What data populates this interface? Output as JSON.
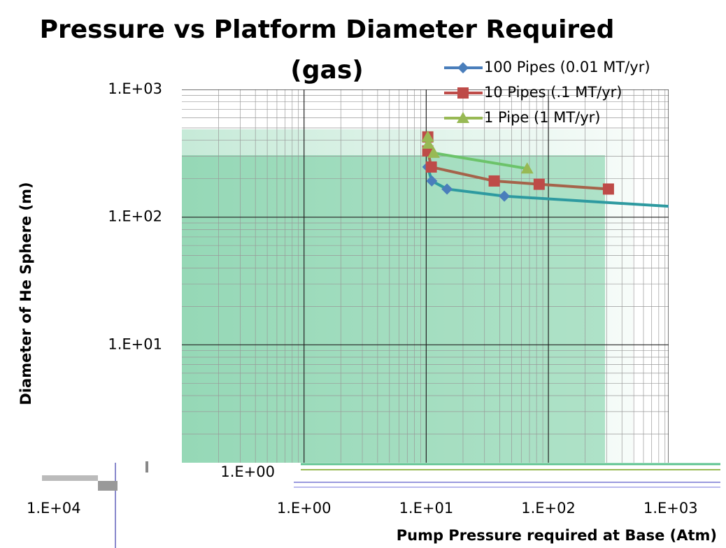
{
  "stray_label": "1.E+04",
  "chart_data": {
    "type": "line",
    "title": "Pressure vs Platform Diameter Required (gas)",
    "x_label": "Pump Pressure required at Base (Atm)",
    "y_label": "Diameter of He Sphere (m)",
    "log_x": true,
    "log_y": true,
    "grid": true,
    "legend": "top-right",
    "xlim": [
      0.1,
      1100
    ],
    "ylim": [
      1,
      1000
    ],
    "xticks": [
      {
        "value": 1,
        "label": "1.E+00"
      },
      {
        "value": 10,
        "label": "1.E+01"
      },
      {
        "value": 100,
        "label": "1.E+02"
      },
      {
        "value": 1000,
        "label": "1.E+03"
      }
    ],
    "yticks": [
      {
        "value": 1,
        "label": "1.E+00"
      },
      {
        "value": 10,
        "label": "1.E+01"
      },
      {
        "value": 100,
        "label": "1.E+02"
      },
      {
        "value": 1000,
        "label": "1.E+03"
      }
    ],
    "series": [
      {
        "name": "100 Pipes (0.01 MT/yr)",
        "color": "#4a7ebb",
        "line_color": "#2e9aa0",
        "marker": "diamond",
        "x": [
          10.3,
          11.1,
          14.8,
          43.6,
          1050
        ],
        "values": [
          247,
          192,
          166,
          146,
          121
        ]
      },
      {
        "name": "10 Pipes (.1 MT/yr)",
        "color": "#be4b48",
        "line_color": "#a5634a",
        "marker": "square",
        "x": [
          10.3,
          10.3,
          11.0,
          36,
          84,
          310
        ],
        "values": [
          425,
          330,
          247,
          192,
          181,
          166
        ]
      },
      {
        "name": "1 Pipe (1 MT/yr)",
        "color": "#98b954",
        "line_color": "#6cc36a",
        "marker": "triangle",
        "x": [
          10.3,
          10.4,
          11.5,
          67
        ],
        "values": [
          425,
          375,
          318,
          240
        ]
      }
    ]
  }
}
